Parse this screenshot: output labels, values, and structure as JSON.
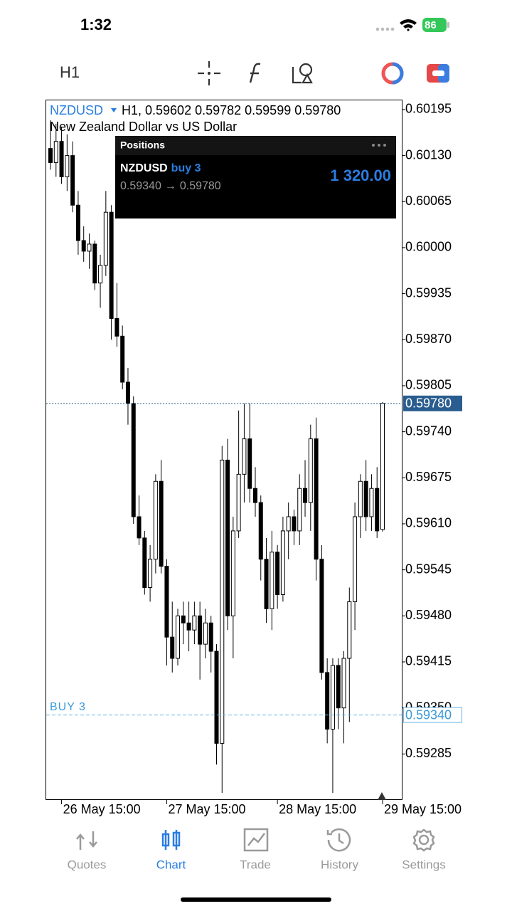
{
  "status_bar": {
    "time": "1:32",
    "battery": "86"
  },
  "toolbar": {
    "timeframe": "H1"
  },
  "chart_data": {
    "type": "candlestick",
    "symbol": "NZDUSD",
    "description": "New Zealand Dollar vs US Dollar",
    "ohlc_header": "H1, 0.59602 0.59782 0.59599 0.59780",
    "categories": [
      null,
      null,
      "26 May 15:00",
      null,
      null,
      null,
      null,
      null,
      null,
      null,
      null,
      null,
      null,
      null,
      null,
      null,
      null,
      null,
      null,
      null,
      null,
      "27 May 15:00",
      null,
      null,
      null,
      null,
      null,
      null,
      null,
      null,
      null,
      null,
      null,
      null,
      null,
      null,
      null,
      null,
      null,
      null,
      null,
      "28 May 15:00",
      null,
      null,
      null,
      null,
      null,
      null,
      null,
      null,
      null,
      null,
      null,
      null,
      null,
      null,
      null,
      null,
      null,
      null,
      "29 May 15:00"
    ],
    "ohlc": [
      [
        0.6014,
        0.6018,
        0.6011,
        0.6012
      ],
      [
        0.6012,
        0.60175,
        0.601,
        0.6015
      ],
      [
        0.6015,
        0.6017,
        0.6009,
        0.601
      ],
      [
        0.601,
        0.6016,
        0.6008,
        0.6013
      ],
      [
        0.6013,
        0.6015,
        0.6005,
        0.6006
      ],
      [
        0.6006,
        0.6008,
        0.5999,
        0.6001
      ],
      [
        0.6001,
        0.6003,
        0.5998,
        0.59995
      ],
      [
        0.59995,
        0.6002,
        0.5997,
        0.60005
      ],
      [
        0.60005,
        0.6001,
        0.5994,
        0.5995
      ],
      [
        0.5995,
        0.5999,
        0.59915,
        0.59975
      ],
      [
        0.59975,
        0.6008,
        0.5996,
        0.6005
      ],
      [
        0.6005,
        0.6006,
        0.5987,
        0.599
      ],
      [
        0.599,
        0.5995,
        0.5986,
        0.59875
      ],
      [
        0.59875,
        0.5989,
        0.598,
        0.5981
      ],
      [
        0.5981,
        0.5983,
        0.5975,
        0.5978
      ],
      [
        0.5978,
        0.5979,
        0.5961,
        0.5962
      ],
      [
        0.5962,
        0.5965,
        0.5958,
        0.5959
      ],
      [
        0.5959,
        0.596,
        0.5951,
        0.5952
      ],
      [
        0.5952,
        0.5958,
        0.595,
        0.5956
      ],
      [
        0.5956,
        0.5968,
        0.5954,
        0.5967
      ],
      [
        0.5967,
        0.597,
        0.5954,
        0.5955
      ],
      [
        0.5955,
        0.5956,
        0.5941,
        0.5945
      ],
      [
        0.5945,
        0.595,
        0.594,
        0.5942
      ],
      [
        0.5942,
        0.5949,
        0.5941,
        0.5948
      ],
      [
        0.5948,
        0.595,
        0.5944,
        0.5947
      ],
      [
        0.5947,
        0.595,
        0.5943,
        0.5946
      ],
      [
        0.5946,
        0.595,
        0.5944,
        0.5948
      ],
      [
        0.5948,
        0.595,
        0.5939,
        0.5944
      ],
      [
        0.5944,
        0.5949,
        0.5942,
        0.5947
      ],
      [
        0.5947,
        0.5948,
        0.594,
        0.5943
      ],
      [
        0.5943,
        0.5944,
        0.5927,
        0.593
      ],
      [
        0.593,
        0.5972,
        0.5923,
        0.597
      ],
      [
        0.597,
        0.5973,
        0.5946,
        0.5948
      ],
      [
        0.5948,
        0.5962,
        0.5942,
        0.596
      ],
      [
        0.596,
        0.5977,
        0.5959,
        0.5968
      ],
      [
        0.5968,
        0.5978,
        0.5964,
        0.5973
      ],
      [
        0.5973,
        0.5978,
        0.5964,
        0.5966
      ],
      [
        0.5966,
        0.5969,
        0.5962,
        0.5964
      ],
      [
        0.5964,
        0.5965,
        0.5953,
        0.5956
      ],
      [
        0.5956,
        0.5959,
        0.5947,
        0.5949
      ],
      [
        0.5949,
        0.596,
        0.5946,
        0.5957
      ],
      [
        0.5957,
        0.5958,
        0.5949,
        0.5951
      ],
      [
        0.5951,
        0.5962,
        0.595,
        0.596
      ],
      [
        0.596,
        0.5964,
        0.5956,
        0.5962
      ],
      [
        0.5962,
        0.5963,
        0.5958,
        0.596
      ],
      [
        0.596,
        0.5968,
        0.5958,
        0.5966
      ],
      [
        0.5966,
        0.597,
        0.5962,
        0.5964
      ],
      [
        0.5964,
        0.5975,
        0.596,
        0.5973
      ],
      [
        0.5973,
        0.5976,
        0.5953,
        0.5956
      ],
      [
        0.5956,
        0.5958,
        0.5939,
        0.594
      ],
      [
        0.594,
        0.5942,
        0.593,
        0.5932
      ],
      [
        0.5932,
        0.5942,
        0.5923,
        0.5941
      ],
      [
        0.5941,
        0.5942,
        0.5932,
        0.5935
      ],
      [
        0.5935,
        0.5943,
        0.593,
        0.5942
      ],
      [
        0.5942,
        0.5952,
        0.5933,
        0.595
      ],
      [
        0.595,
        0.5964,
        0.5946,
        0.5962
      ],
      [
        0.5962,
        0.5968,
        0.5959,
        0.5967
      ],
      [
        0.5967,
        0.597,
        0.596,
        0.5962
      ],
      [
        0.5962,
        0.5968,
        0.596,
        0.5966
      ],
      [
        0.5966,
        0.5969,
        0.5959,
        0.596
      ],
      [
        0.59602,
        0.59782,
        0.59599,
        0.5978
      ]
    ],
    "ylim": [
      0.5922,
      0.60209
    ],
    "yticks": [
      {
        "value": 0.60195,
        "label": "0.60195"
      },
      {
        "value": 0.6013,
        "label": "0.60130"
      },
      {
        "value": 0.60065,
        "label": "0.60065"
      },
      {
        "value": 0.6,
        "label": "0.60000"
      },
      {
        "value": 0.59935,
        "label": "0.59935"
      },
      {
        "value": 0.5987,
        "label": "0.59870"
      },
      {
        "value": 0.59805,
        "label": "0.59805"
      },
      {
        "value": 0.5974,
        "label": "0.59740"
      },
      {
        "value": 0.59675,
        "label": "0.59675"
      },
      {
        "value": 0.5961,
        "label": "0.59610"
      },
      {
        "value": 0.59545,
        "label": "0.59545"
      },
      {
        "value": 0.5948,
        "label": "0.59480"
      },
      {
        "value": 0.59415,
        "label": "0.59415"
      },
      {
        "value": 0.5935,
        "label": "0.59350"
      },
      {
        "value": 0.59285,
        "label": "0.59285"
      }
    ],
    "current_price": {
      "value": 0.5978,
      "label": "0.59780"
    },
    "position_line": {
      "name": "BUY 3",
      "value": 0.5934,
      "label": "0.59340"
    },
    "up_color": "#ffffff",
    "down_color": "#000000"
  },
  "positions_panel": {
    "title": "Positions",
    "symbol": "NZDUSD",
    "side": "buy 3",
    "arrow": "→",
    "profit": "1 320.00"
  },
  "tab_bar": {
    "tabs": [
      "Quotes",
      "Chart",
      "Trade",
      "History",
      "Settings"
    ],
    "active": 1
  }
}
